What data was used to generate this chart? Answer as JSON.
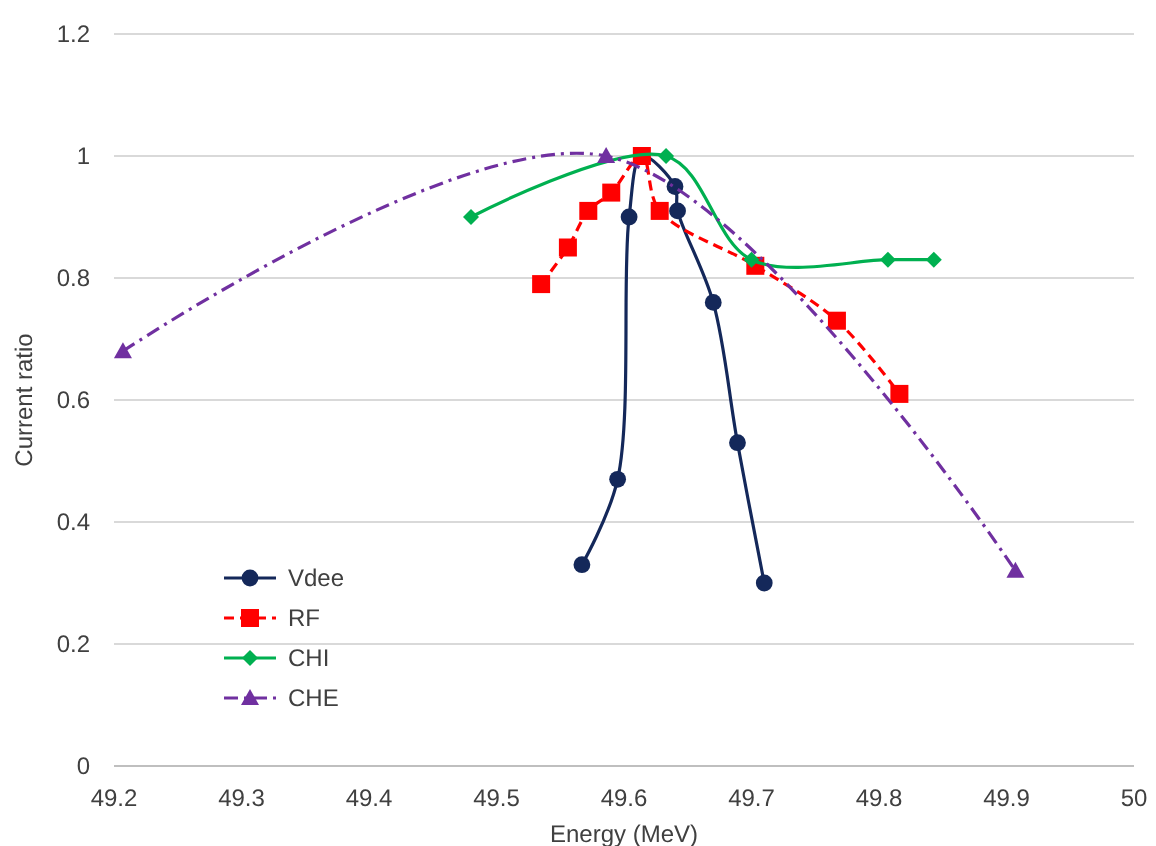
{
  "chart_data": {
    "type": "line",
    "xlabel": "Energy (MeV)",
    "ylabel": "Current ratio",
    "xlim": [
      49.2,
      50
    ],
    "xticks": [
      49.2,
      49.3,
      49.4,
      49.5,
      49.6,
      49.7,
      49.8,
      49.9,
      50
    ],
    "ylim": [
      0,
      1.2
    ],
    "yticks": [
      0,
      0.2,
      0.4,
      0.6,
      0.8,
      1,
      1.2
    ],
    "grid": "y",
    "legend": "bottom left",
    "series": [
      {
        "name": "Vdee",
        "color": "#14285a",
        "marker": "circle",
        "line_style": "solid",
        "x": [
          49.567,
          49.595,
          49.604,
          49.614,
          49.64,
          49.642,
          49.67,
          49.689,
          49.71
        ],
        "values": [
          0.33,
          0.47,
          0.9,
          1.0,
          0.95,
          0.91,
          0.76,
          0.53,
          0.3
        ]
      },
      {
        "name": "RF",
        "color": "#ff0000",
        "marker": "square",
        "line_style": "dashed",
        "x": [
          49.535,
          49.556,
          49.572,
          49.59,
          49.614,
          49.628,
          49.703,
          49.767,
          49.816
        ],
        "values": [
          0.79,
          0.85,
          0.91,
          0.94,
          1.0,
          0.91,
          0.82,
          0.73,
          0.61
        ]
      },
      {
        "name": "CHI",
        "color": "#00b050",
        "marker": "diamond",
        "line_style": "solid",
        "x": [
          49.48,
          49.633,
          49.7,
          49.807,
          49.843
        ],
        "values": [
          0.9,
          1.0,
          0.83,
          0.83,
          0.83
        ]
      },
      {
        "name": "CHE",
        "color": "#7030a0",
        "marker": "triangle",
        "line_style": "dashdot",
        "x": [
          49.207,
          49.586,
          49.907
        ],
        "values": [
          0.68,
          1.0,
          0.32
        ]
      }
    ]
  }
}
